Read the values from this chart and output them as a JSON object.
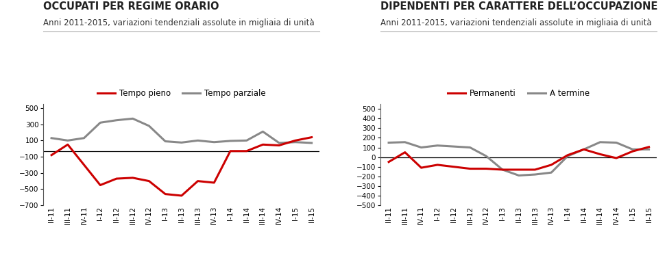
{
  "x_labels": [
    "II-11",
    "III-11",
    "IV-11",
    "I-12",
    "II-12",
    "III-12",
    "IV-12",
    "I-13",
    "II-13",
    "III-13",
    "IV-13",
    "I-14",
    "II-14",
    "III-14",
    "IV-14",
    "I-15",
    "II-15"
  ],
  "chart1": {
    "title": "OCCUPATI PER REGIME ORARIO",
    "subtitle": "Anni 2011-2015, variazioni tendenziali assolute in migliaia di unità",
    "legend1": "Tempo pieno",
    "legend2": "Tempo parziale",
    "red_line": [
      -80,
      50,
      -200,
      -450,
      -370,
      -360,
      -400,
      -560,
      -580,
      -400,
      -420,
      -30,
      -30,
      50,
      40,
      100,
      140
    ],
    "gray_line": [
      130,
      100,
      130,
      320,
      350,
      370,
      280,
      90,
      75,
      100,
      80,
      95,
      100,
      210,
      70,
      80,
      70
    ],
    "ylim": [
      -700,
      550
    ],
    "yticks": [
      -700,
      -500,
      -300,
      -100,
      100,
      300,
      500
    ],
    "hline_y": -30
  },
  "chart2": {
    "title": "DIPENDENTI PER CARATTERE DELL’OCCUPAZIONE",
    "subtitle": "Anni 2011-2015, variazioni tendenziali assolute in migliaia di unità",
    "legend1": "Permanenti",
    "legend2": "A termine",
    "red_line": [
      -50,
      50,
      -110,
      -80,
      -100,
      -120,
      -120,
      -130,
      -130,
      -130,
      -80,
      20,
      80,
      30,
      -10,
      60,
      105
    ],
    "gray_line": [
      150,
      155,
      100,
      120,
      110,
      100,
      10,
      -130,
      -190,
      -180,
      -160,
      10,
      80,
      155,
      150,
      80,
      80
    ],
    "ylim": [
      -500,
      550
    ],
    "yticks": [
      -500,
      -400,
      -300,
      -200,
      -100,
      0,
      100,
      200,
      300,
      400,
      500
    ],
    "hline_y": 0
  },
  "red_color": "#cc0000",
  "gray_color": "#888888",
  "line_width": 2.2,
  "title_fontsize": 10.5,
  "subtitle_fontsize": 8.5,
  "tick_fontsize": 7.5,
  "legend_fontsize": 8.5
}
